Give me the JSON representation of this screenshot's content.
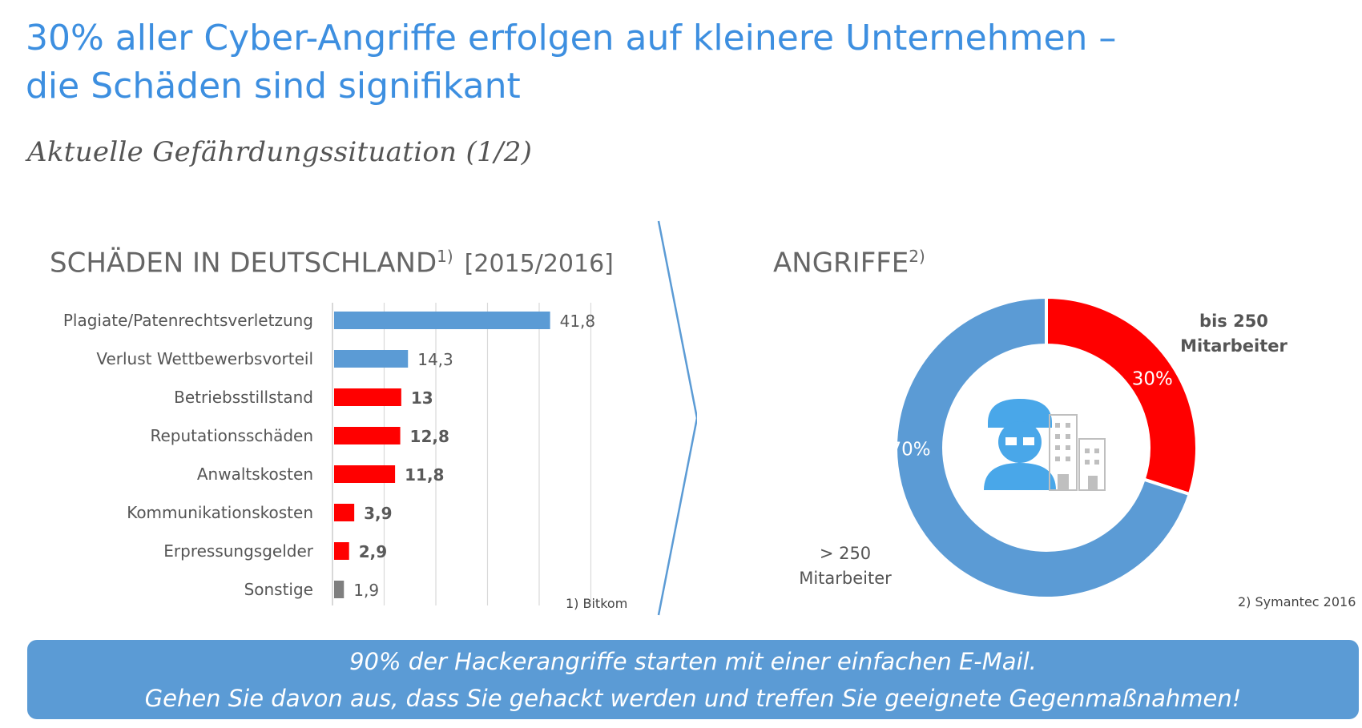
{
  "header": {
    "title_line1": "30% aller Cyber-Angriffe erfolgen auf kleinere Unternehmen –",
    "title_line2": "die Schäden sind signifikant",
    "subtitle": "Aktuelle Gefährdungssituation (1/2)"
  },
  "left": {
    "heading": "SCHÄDEN IN DEUTSCHLAND",
    "heading_sup": "1)",
    "period": "[2015/2016]",
    "footnote": "1) Bitkom"
  },
  "right": {
    "heading": "ANGRIFFE",
    "heading_sup": "2)",
    "footnote": "2) Symantec 2016",
    "small_label": [
      "bis 250",
      "Mitarbeiter"
    ],
    "large_label": [
      "> 250",
      "Mitarbeiter"
    ]
  },
  "banner": {
    "line1": "90% der Hackerangriffe starten mit einer einfachen E-Mail.",
    "line2": "Gehen Sie davon aus, dass Sie gehackt werden und treffen Sie geeignete Gegenmaßnahmen!"
  },
  "colors": {
    "title": "#3d8fe0",
    "blue": "#5b9bd5",
    "red": "#ff0000",
    "gray": "#7f7f7f"
  },
  "chart_data": [
    {
      "type": "bar",
      "orientation": "horizontal",
      "title": "SCHÄDEN IN DEUTSCHLAND",
      "categories": [
        "Plagiate/Patenrechtsverletzung",
        "Verlust Wettbewerbsvorteil",
        "Betriebsstillstand",
        "Reputationsschäden",
        "Anwaltskosten",
        "Kommunikationskosten",
        "Erpressungsgelder",
        "Sonstige"
      ],
      "values": [
        41.8,
        14.3,
        13,
        12.8,
        11.8,
        3.9,
        2.9,
        1.9
      ],
      "value_labels": [
        "41,8",
        "14,3",
        "13",
        "12,8",
        "11,8",
        "3,9",
        "2,9",
        "1,9"
      ],
      "bar_colors": [
        "#5b9bd5",
        "#5b9bd5",
        "#ff0000",
        "#ff0000",
        "#ff0000",
        "#ff0000",
        "#ff0000",
        "#7f7f7f"
      ],
      "label_bold": [
        false,
        false,
        true,
        true,
        true,
        true,
        true,
        false
      ],
      "xlim": [
        0,
        50
      ],
      "grid": true
    },
    {
      "type": "pie",
      "variant": "donut",
      "title": "ANGRIFFE",
      "slices": [
        {
          "label": "bis 250 Mitarbeiter",
          "value": 30,
          "value_label": "30%",
          "color": "#ff0000"
        },
        {
          "label": "> 250 Mitarbeiter",
          "value": 70,
          "value_label": "70%",
          "color": "#5b9bd5"
        }
      ]
    }
  ]
}
